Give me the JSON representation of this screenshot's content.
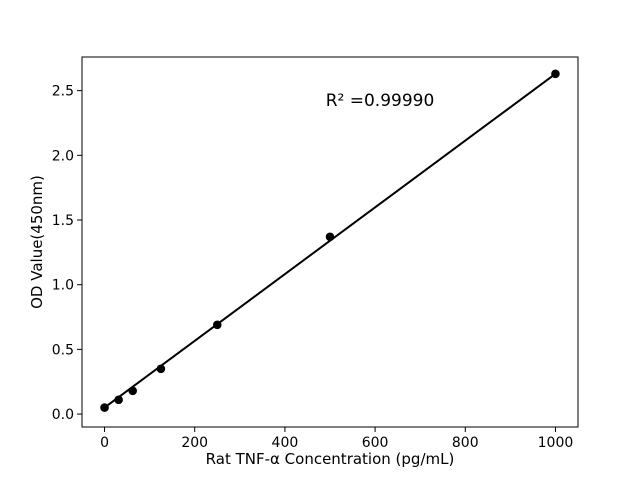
{
  "chart_data": {
    "type": "scatter",
    "title": "",
    "xlabel": "Rat TNF-α Concentration (pg/mL)",
    "ylabel": "OD Value(450nm)",
    "annotation": "R² =0.99990",
    "r_squared": 0.9999,
    "series": [
      {
        "name": "standard-curve-points",
        "x": [
          0,
          31.25,
          62.5,
          125,
          250,
          500,
          1000
        ],
        "y": [
          0.05,
          0.11,
          0.18,
          0.35,
          0.69,
          1.37,
          2.63
        ]
      }
    ],
    "fit_line": {
      "x": [
        0,
        1000
      ],
      "y": [
        0.05,
        2.63
      ]
    },
    "xticks": [
      0,
      200,
      400,
      600,
      800,
      1000
    ],
    "xtick_labels": [
      "0",
      "200",
      "400",
      "600",
      "800",
      "1000"
    ],
    "yticks": [
      0.0,
      0.5,
      1.0,
      1.5,
      2.0,
      2.5
    ],
    "ytick_labels": [
      "0.0",
      "0.5",
      "1.0",
      "1.5",
      "2.0",
      "2.5"
    ],
    "xlim": [
      -50,
      1050
    ],
    "ylim": [
      -0.1,
      2.76
    ],
    "grid": false,
    "legend": "none",
    "point_color": "#000000",
    "line_color": "#000000",
    "axis_color": "#000000",
    "background_color": "#ffffff"
  }
}
